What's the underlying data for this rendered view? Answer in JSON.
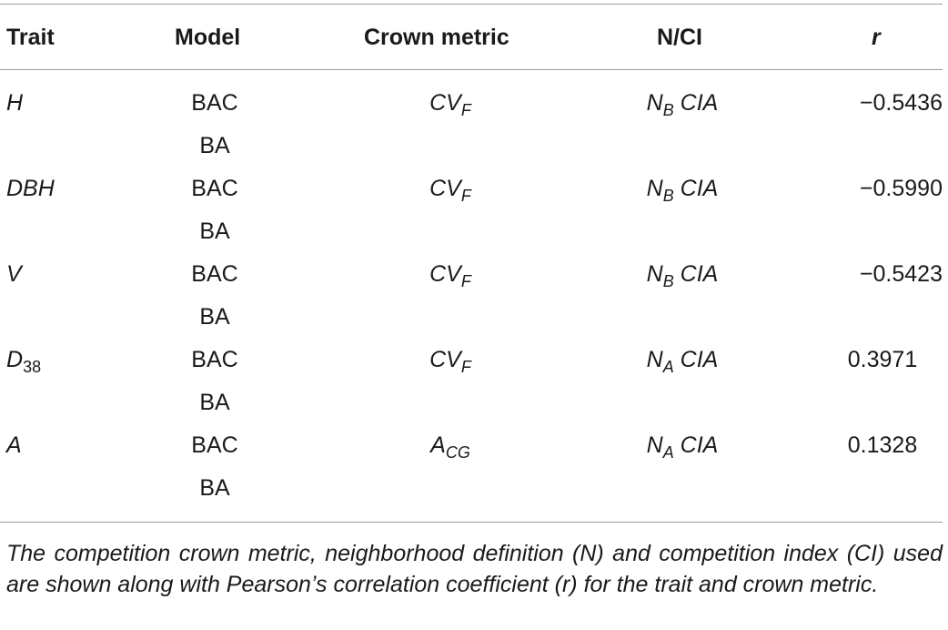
{
  "table": {
    "headers": {
      "trait": "Trait",
      "model": "Model",
      "crown_metric": "Crown metric",
      "n_ci": "N/CI",
      "r": "r"
    },
    "rows": [
      {
        "trait": {
          "main": "H",
          "sub": ""
        },
        "model_1": "BAC",
        "model_2": "BA",
        "metric": {
          "main": "CV",
          "sub": "F"
        },
        "n_ci": {
          "main": "N",
          "sub": "B",
          "rest": " CIA"
        },
        "r": "−0.5436"
      },
      {
        "trait": {
          "main": "DBH",
          "sub": ""
        },
        "model_1": "BAC",
        "model_2": "BA",
        "metric": {
          "main": "CV",
          "sub": "F"
        },
        "n_ci": {
          "main": "N",
          "sub": "B",
          "rest": " CIA"
        },
        "r": "−0.5990"
      },
      {
        "trait": {
          "main": "V",
          "sub": ""
        },
        "model_1": "BAC",
        "model_2": "BA",
        "metric": {
          "main": "CV",
          "sub": "F"
        },
        "n_ci": {
          "main": "N",
          "sub": "B",
          "rest": " CIA"
        },
        "r": "−0.5423"
      },
      {
        "trait": {
          "main": "D",
          "sub": "38"
        },
        "model_1": "BAC",
        "model_2": "BA",
        "metric": {
          "main": "CV",
          "sub": "F"
        },
        "n_ci": {
          "main": "N",
          "sub": "A",
          "rest": " CIA"
        },
        "r": "0.3971"
      },
      {
        "trait": {
          "main": "A",
          "sub": ""
        },
        "model_1": "BAC",
        "model_2": "BA",
        "metric": {
          "main": "A",
          "sub": "CG"
        },
        "n_ci": {
          "main": "N",
          "sub": "A",
          "rest": " CIA"
        },
        "r": "0.1328"
      }
    ]
  },
  "footnote": "The competition crown metric, neighborhood definition (N) and competition index (CI) used are shown along with Pearson’s correlation coefficient (r) for the trait and crown metric."
}
